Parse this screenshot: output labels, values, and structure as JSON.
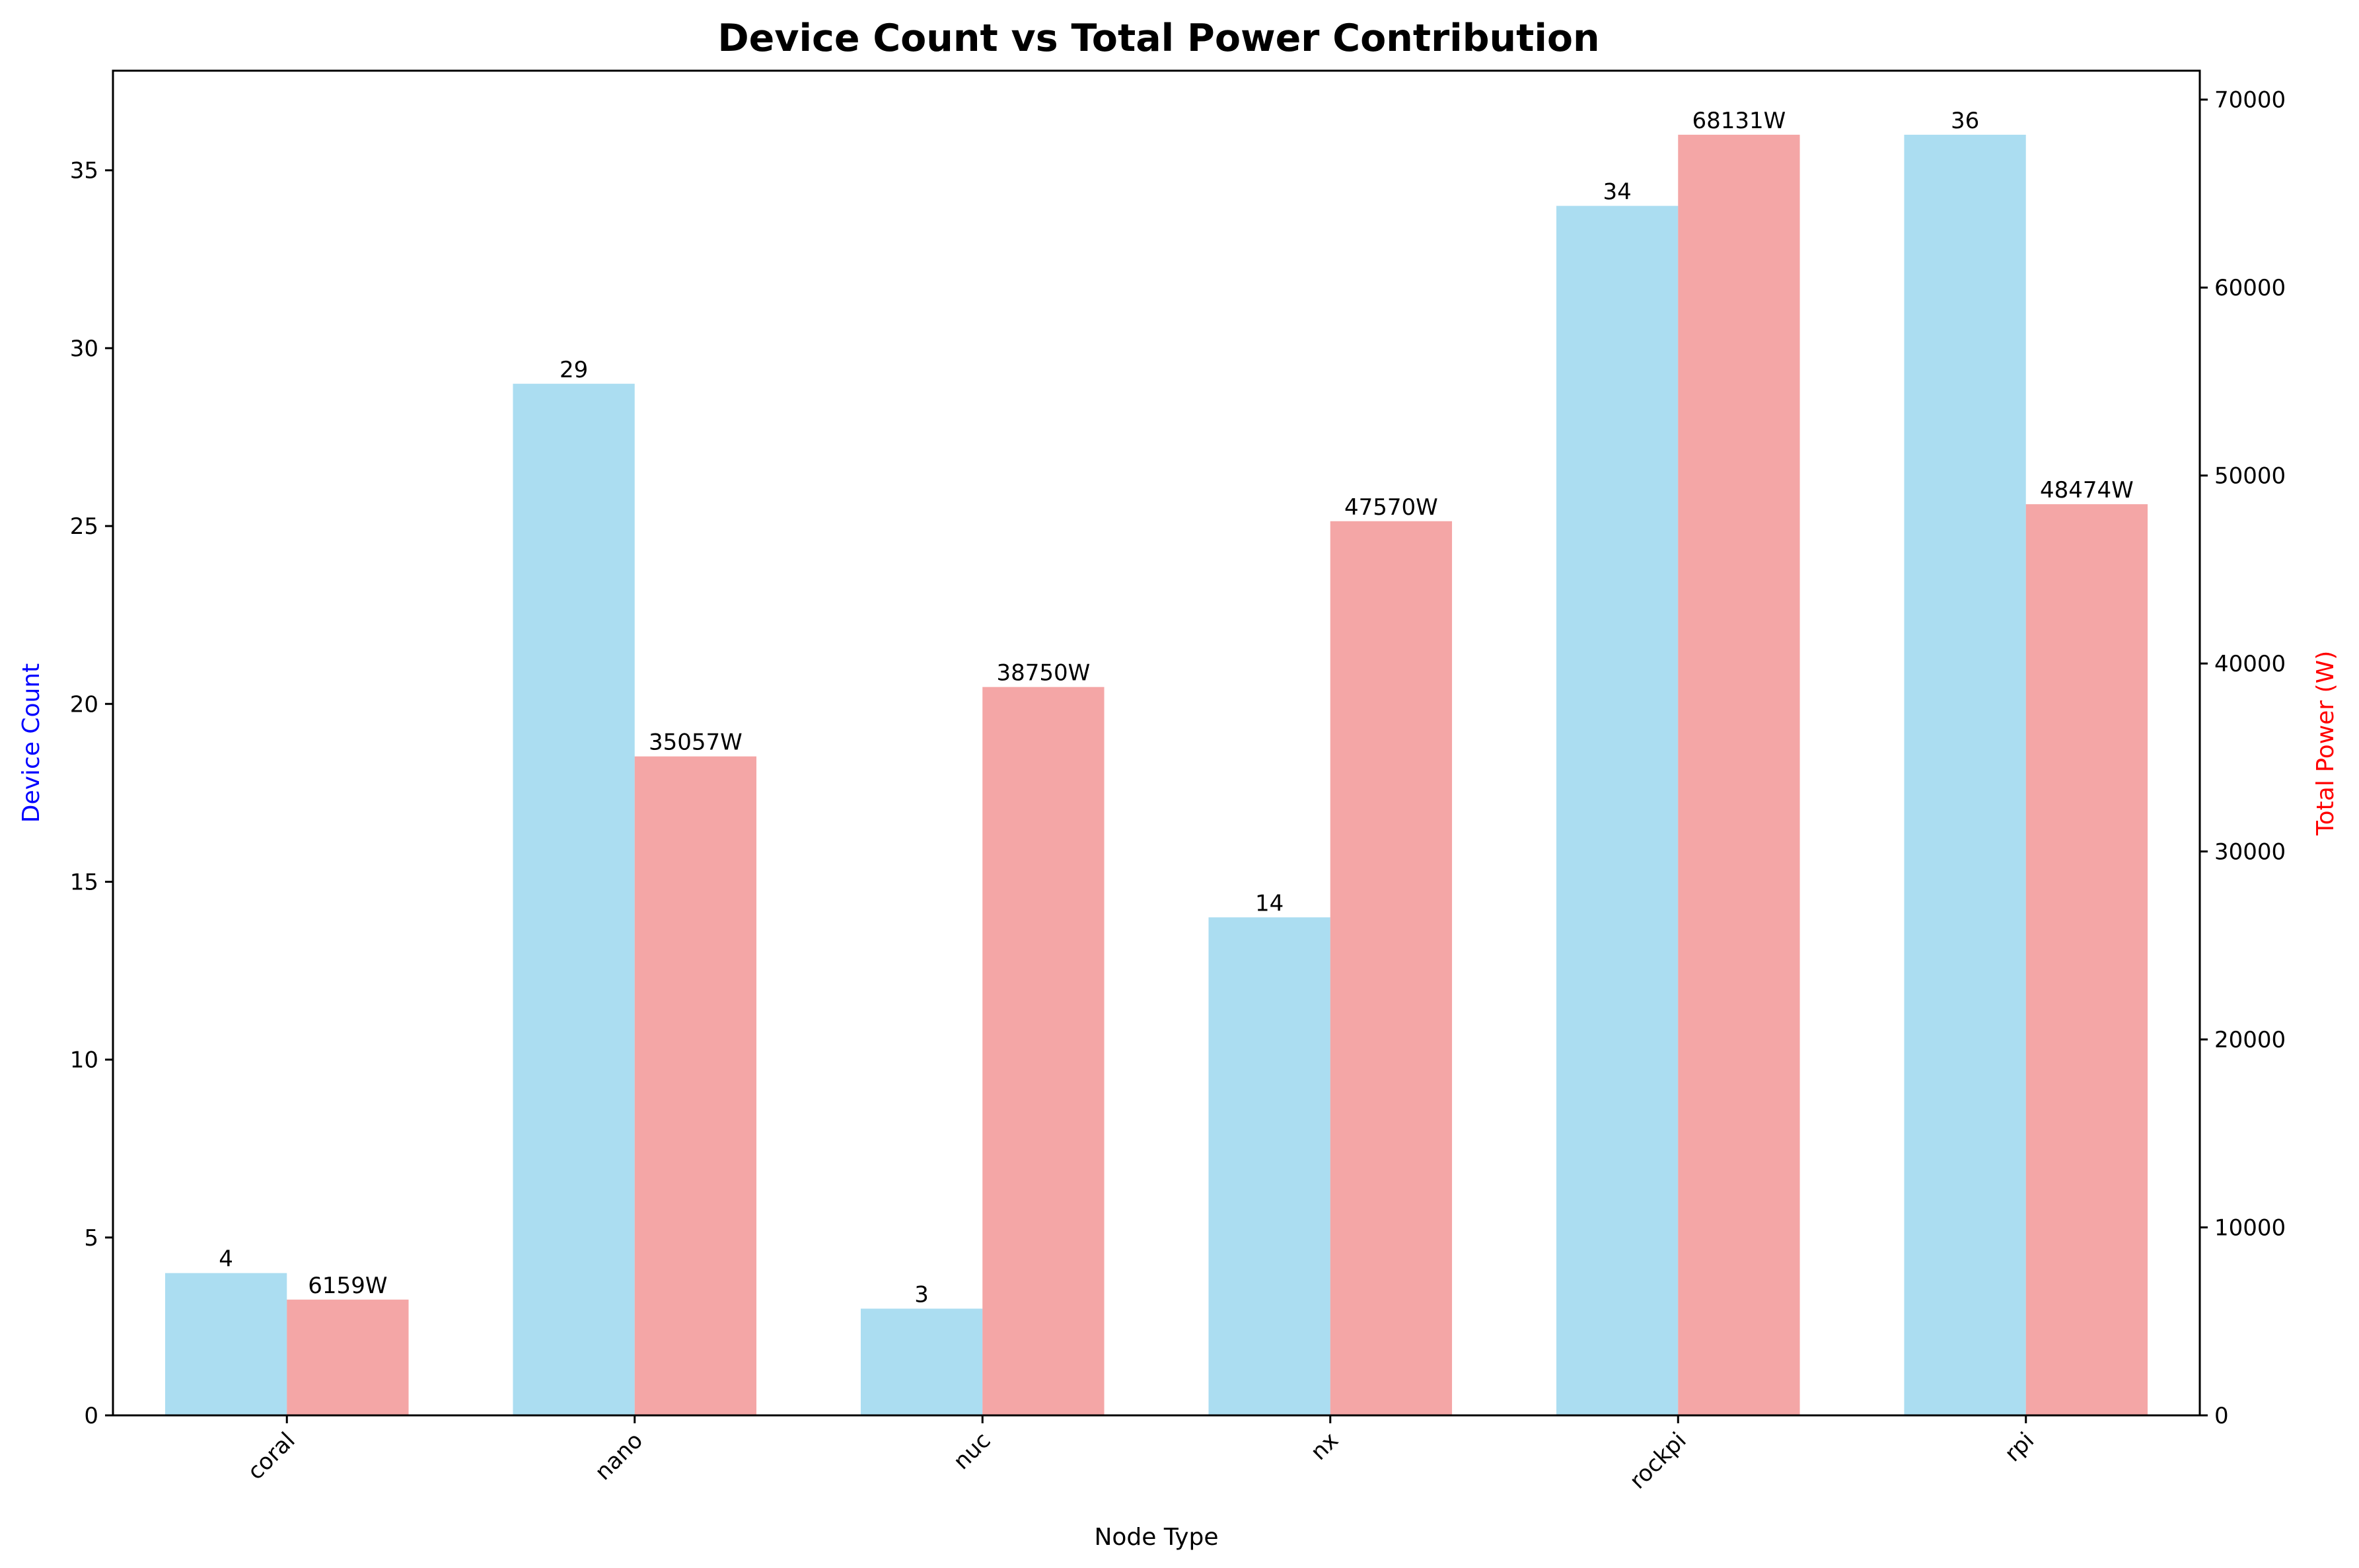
{
  "chart_data": {
    "type": "bar",
    "title": "Device Count vs Total Power Contribution",
    "xlabel": "Node Type",
    "categories": [
      "coral",
      "nano",
      "nuc",
      "nx",
      "rockpi",
      "rpi"
    ],
    "series": [
      {
        "name": "Device Count",
        "axis": "left",
        "color": "#87CEEB",
        "values": [
          4,
          29,
          3,
          14,
          34,
          36
        ],
        "value_labels": [
          "4",
          "29",
          "3",
          "14",
          "34",
          "36"
        ]
      },
      {
        "name": "Total Power (W)",
        "axis": "right",
        "color": "#F08080",
        "values": [
          6159,
          35057,
          38750,
          47570,
          68131,
          48474
        ],
        "value_labels": [
          "6159W",
          "35057W",
          "38750W",
          "47570W",
          "68131W",
          "48474W"
        ]
      }
    ],
    "y_left": {
      "label": "Device Count",
      "label_color": "#0000FF",
      "ylim": [
        0,
        37.8
      ],
      "ticks": [
        0,
        5,
        10,
        15,
        20,
        25,
        30,
        35
      ],
      "tick_labels": [
        "0",
        "5",
        "10",
        "15",
        "20",
        "25",
        "30",
        "35"
      ]
    },
    "y_right": {
      "label": "Total Power (W)",
      "label_color": "#FF0000",
      "ylim": [
        0,
        71537.55
      ],
      "ticks": [
        0,
        10000,
        20000,
        30000,
        40000,
        50000,
        60000,
        70000
      ],
      "tick_labels": [
        "0",
        "10000",
        "20000",
        "30000",
        "40000",
        "50000",
        "60000",
        "70000"
      ]
    },
    "grid": false,
    "legend": "none"
  }
}
